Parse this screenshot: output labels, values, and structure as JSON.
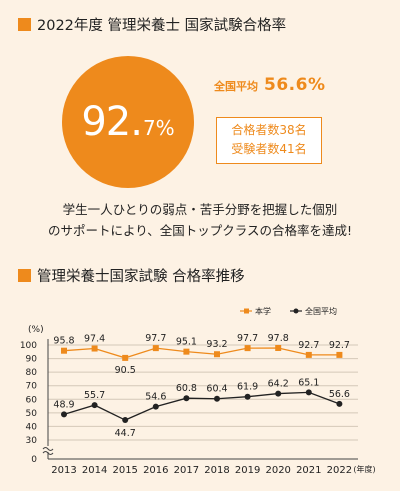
{
  "section1": {
    "title": "2022年度 管理栄養士 国家試験合格率",
    "pass_rate_number": "92.",
    "pass_rate_unit": "7%",
    "national_avg_label": "全国平均",
    "national_avg_value": "56.6%",
    "passers": "合格者数38名",
    "examinees": "受験者数41名",
    "message_line1": "学生一人ひとりの弱点・苦手分野を把握した個別",
    "message_line2": "のサポートにより、全国トップクラスの合格率を達成!"
  },
  "section2": {
    "title": "管理栄養士国家試験 合格率推移"
  },
  "colors": {
    "accent": "#ee8a1c",
    "national": "#222222",
    "background": "#fdf2e4"
  },
  "chart_data": {
    "type": "line",
    "categories": [
      "2013",
      "2014",
      "2015",
      "2016",
      "2017",
      "2018",
      "2019",
      "2020",
      "2021",
      "2022"
    ],
    "category_suffix": "(年度)",
    "y_unit": "(%)",
    "y_ticks": [
      "0",
      "30",
      "40",
      "50",
      "60",
      "70",
      "80",
      "90",
      "100"
    ],
    "ylim": [
      0,
      100
    ],
    "axis_break": true,
    "grid": true,
    "legend_position": "top-right",
    "series": [
      {
        "name": "本学",
        "color": "#ee8a1c",
        "marker": "square",
        "values": [
          95.8,
          97.4,
          90.5,
          97.7,
          95.1,
          93.2,
          97.7,
          97.8,
          92.7,
          92.7
        ],
        "labels": [
          "95.8",
          "97.4",
          "90.5",
          "97.7",
          "95.1",
          "93.2",
          "97.7",
          "97.8",
          "92.7",
          "92.7"
        ]
      },
      {
        "name": "全国平均",
        "color": "#222222",
        "marker": "circle",
        "values": [
          48.9,
          55.7,
          44.7,
          54.6,
          60.8,
          60.4,
          61.9,
          64.2,
          65.1,
          56.6
        ],
        "labels": [
          "48.9",
          "55.7",
          "44.7",
          "54.6",
          "60.8",
          "60.4",
          "61.9",
          "64.2",
          "65.1",
          "56.6"
        ]
      }
    ]
  }
}
